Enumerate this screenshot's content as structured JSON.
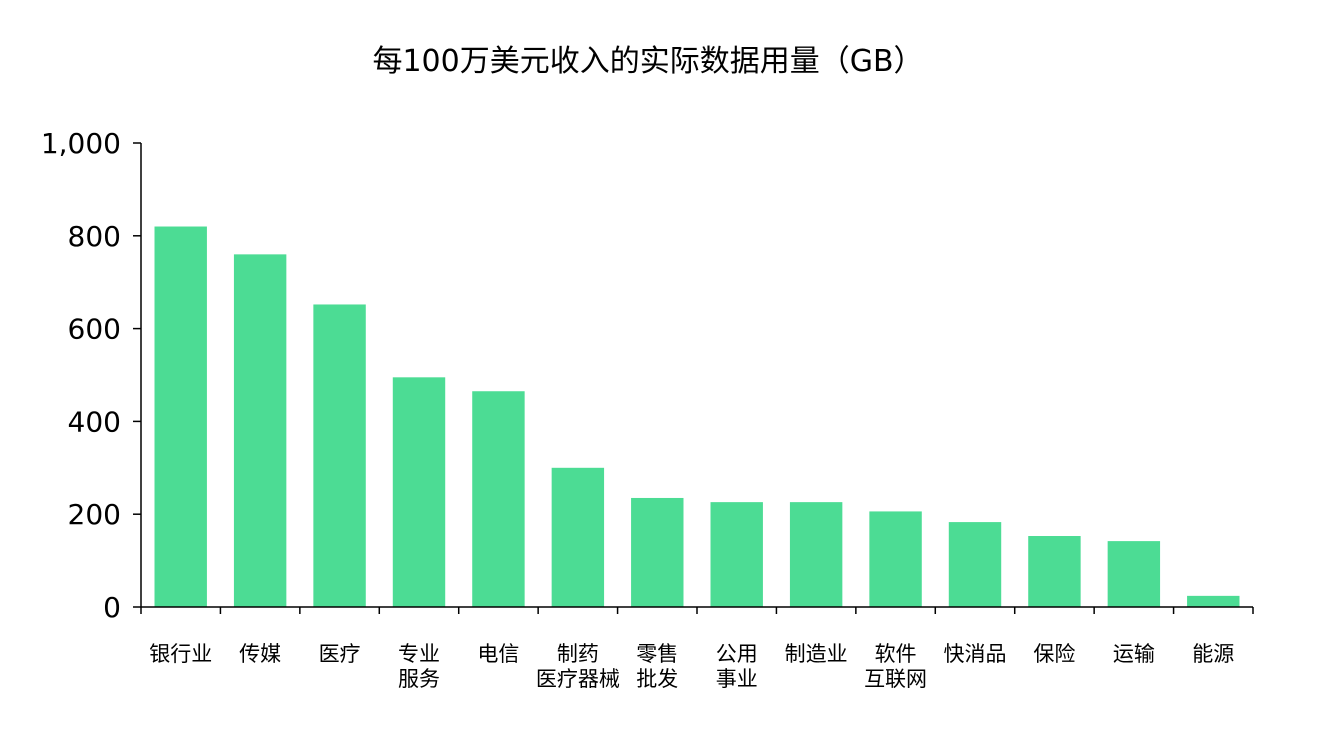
{
  "chart_data": {
    "type": "bar",
    "title": "每100万美元收入的实际数据用量（GB）",
    "xlabel": "",
    "ylabel": "",
    "categories": [
      [
        "银行业"
      ],
      [
        "传媒"
      ],
      [
        "医疗"
      ],
      [
        "专业",
        "服务"
      ],
      [
        "电信"
      ],
      [
        "制药",
        "医疗器械"
      ],
      [
        "零售",
        "批发"
      ],
      [
        "公用",
        "事业"
      ],
      [
        "制造业"
      ],
      [
        "软件",
        "互联网"
      ],
      [
        "快消品"
      ],
      [
        "保险"
      ],
      [
        "运输"
      ],
      [
        "能源"
      ]
    ],
    "values": [
      820,
      760,
      652,
      495,
      465,
      300,
      235,
      226,
      226,
      206,
      183,
      153,
      142,
      24
    ],
    "ylim": [
      0,
      1000
    ],
    "yticks": [
      0,
      200,
      400,
      600,
      800,
      1000
    ],
    "ytick_labels": [
      "0",
      "200",
      "400",
      "600",
      "800",
      "1,000"
    ],
    "grid": false,
    "bar_color": "#4cdc94",
    "axis_color": "#000000"
  }
}
